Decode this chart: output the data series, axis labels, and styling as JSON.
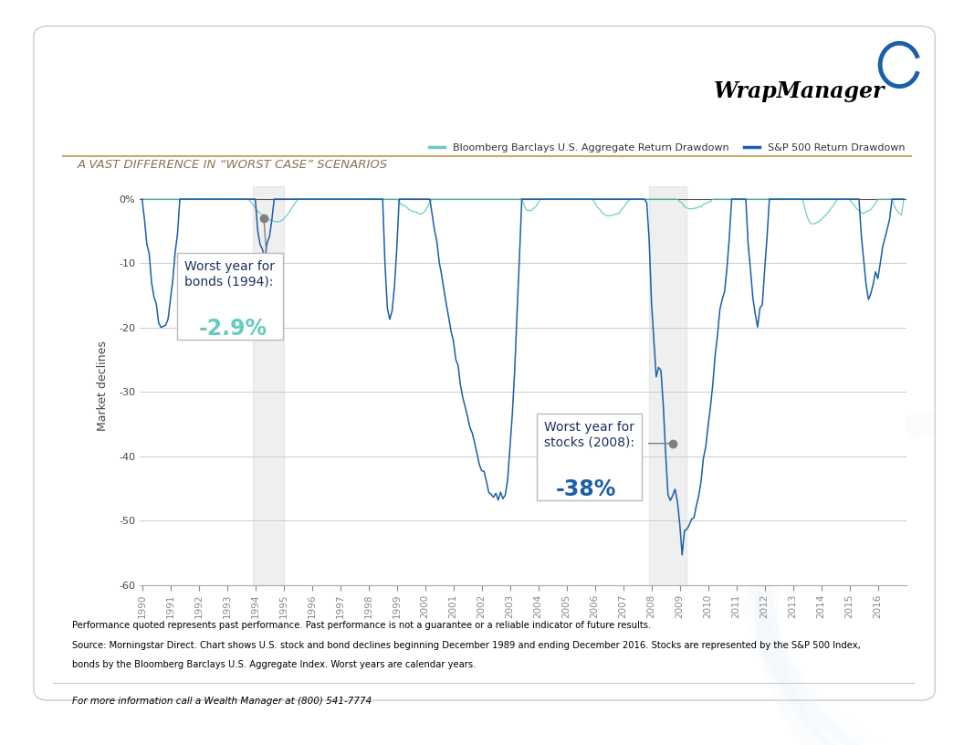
{
  "title": "A VAST DIFFERENCE IN “WORST CASE” SCENARIOS",
  "legend_bond": "Bloomberg Barclays U.S. Aggregate Return Drawdown",
  "legend_stock": "S&P 500 Return Drawdown",
  "ylabel": "Market declines",
  "xlim_start": 1989.917,
  "xlim_end": 2017.0,
  "ylim": [
    -60,
    2
  ],
  "yticks": [
    0,
    -10,
    -20,
    -30,
    -40,
    -50,
    -60
  ],
  "bond_color": "#66ccbb",
  "stock_color": "#1a5fa8",
  "footnote1": "Performance quoted represents past performance. Past performance is not a guarantee or a reliable indicator of future results.",
  "footnote2": "Source: Morningstar Direct. Chart shows U.S. stock and bond declines beginning December 1989 and ending December 2016. Stocks are represented by the S&P 500 Index,",
  "footnote3": "bonds by the Bloomberg Barclays U.S. Aggregate Index. Worst years are calendar years.",
  "contact": "For more information call a Wealth Manager at (800) 541-7774",
  "shade1_start": 1993.917,
  "shade1_end": 1995.0,
  "shade2_start": 2007.917,
  "shade2_end": 2009.25,
  "title_color": "#8B7355",
  "gold_line_color": "#c8a96e"
}
